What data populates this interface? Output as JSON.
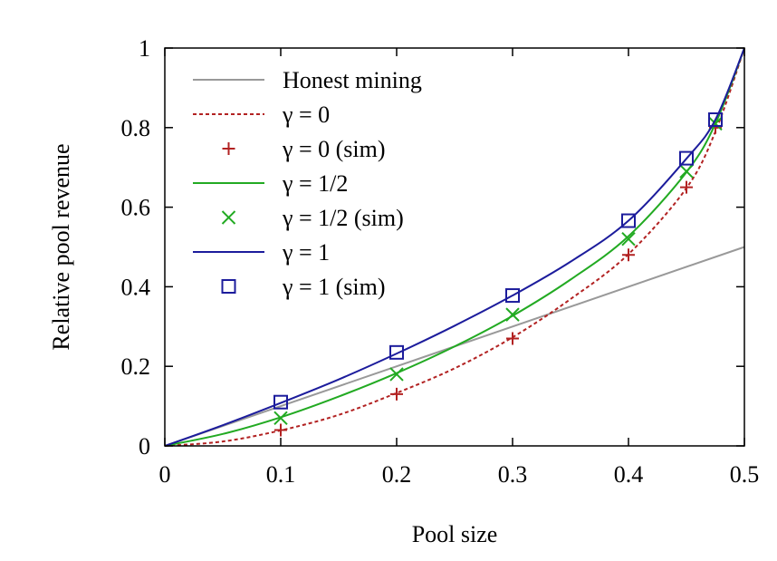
{
  "chart_data": {
    "type": "line",
    "xlabel": "Pool size",
    "ylabel": "Relative pool revenue",
    "xlim": [
      0,
      0.5
    ],
    "ylim": [
      0,
      1
    ],
    "xticks": [
      0,
      0.1,
      0.2,
      0.3,
      0.4,
      0.5
    ],
    "xtick_labels": [
      "0",
      "0.1",
      "0.2",
      "0.3",
      "0.4",
      "0.5"
    ],
    "yticks": [
      0,
      0.2,
      0.4,
      0.6,
      0.8,
      1
    ],
    "ytick_labels": [
      "0",
      "0.2",
      "0.4",
      "0.6",
      "0.8",
      "1"
    ],
    "legend_position": "top-left",
    "series": [
      {
        "name": "Honest mining",
        "kind": "line",
        "color": "#999999",
        "style": "solid",
        "x": [
          0,
          0.5
        ],
        "y": [
          0,
          0.5
        ]
      },
      {
        "name": "γ = 0",
        "kind": "line",
        "color": "#b22222",
        "style": "dashed",
        "x": [
          0,
          0.05,
          0.1,
          0.15,
          0.2,
          0.25,
          0.3,
          0.35,
          0.4,
          0.45,
          0.475,
          0.5
        ],
        "y": [
          0,
          0.011,
          0.039,
          0.078,
          0.133,
          0.195,
          0.273,
          0.369,
          0.482,
          0.648,
          0.79,
          1.0
        ]
      },
      {
        "name": "γ = 0 (sim)",
        "kind": "points",
        "marker": "plus",
        "color": "#b22222",
        "x": [
          0.1,
          0.2,
          0.3,
          0.4,
          0.45,
          0.475
        ],
        "y": [
          0.04,
          0.13,
          0.27,
          0.48,
          0.65,
          0.8
        ]
      },
      {
        "name": "γ = 1/2",
        "kind": "line",
        "color": "#22aa22",
        "style": "solid",
        "x": [
          0,
          0.05,
          0.1,
          0.15,
          0.2,
          0.25,
          0.3,
          0.35,
          0.4,
          0.45,
          0.475,
          0.5
        ],
        "y": [
          0,
          0.03,
          0.072,
          0.124,
          0.183,
          0.25,
          0.327,
          0.418,
          0.527,
          0.688,
          0.81,
          1.0
        ]
      },
      {
        "name": "γ = 1/2 (sim)",
        "kind": "points",
        "marker": "cross",
        "color": "#22aa22",
        "x": [
          0.1,
          0.2,
          0.3,
          0.4,
          0.45,
          0.475
        ],
        "y": [
          0.07,
          0.18,
          0.33,
          0.52,
          0.69,
          0.81
        ]
      },
      {
        "name": "γ = 1",
        "kind": "line",
        "color": "#1c1c9c",
        "style": "solid",
        "x": [
          0,
          0.05,
          0.1,
          0.15,
          0.2,
          0.25,
          0.3,
          0.35,
          0.4,
          0.45,
          0.475,
          0.5
        ],
        "y": [
          0,
          0.052,
          0.108,
          0.167,
          0.232,
          0.302,
          0.378,
          0.463,
          0.566,
          0.722,
          0.82,
          1.0
        ]
      },
      {
        "name": "γ = 1 (sim)",
        "kind": "points",
        "marker": "square",
        "color": "#1c1c9c",
        "x": [
          0.1,
          0.2,
          0.3,
          0.4,
          0.45,
          0.475
        ],
        "y": [
          0.11,
          0.235,
          0.378,
          0.566,
          0.723,
          0.82
        ]
      }
    ]
  }
}
